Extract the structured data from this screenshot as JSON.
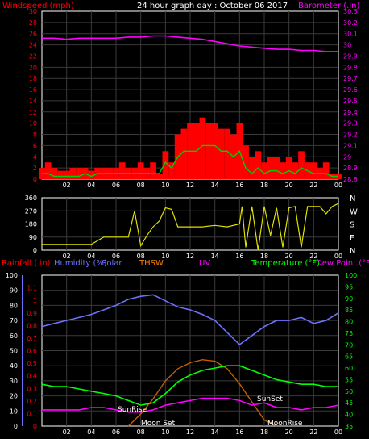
{
  "header": {
    "left_label": "Windspeed (mph)",
    "title": "24 hour graph day : October 06 2017",
    "right_label": "Barometer (.in)"
  },
  "colors": {
    "background": "#000000",
    "grid": "#3a3a3a",
    "axis": "#ffffff",
    "windspeed": "#ff0000",
    "windspeed_label": "#ff0000",
    "avg_wind": "#00d000",
    "barometer": "#ff00ff",
    "direction": "#e0e000",
    "rainfall": "#ff0000",
    "humidity": "#7070ff",
    "solar": "#7070ff",
    "thsw": "#ff8000",
    "uv": "#ff00ff",
    "temperature": "#00ff00",
    "dewpoint": "#ff00ff",
    "sun_curve": "#c06000",
    "tick_text": "#ffffff"
  },
  "chart_data": [
    {
      "type": "line",
      "name": "wind-barometer-panel",
      "xlabel": "",
      "xlim": [
        0,
        24
      ],
      "x_ticks": [
        "02",
        "04",
        "06",
        "08",
        "10",
        "12",
        "14",
        "16",
        "18",
        "20",
        "22",
        "00"
      ],
      "ylabel_left": "Windspeed (mph)",
      "ylim_left": [
        0,
        30
      ],
      "y_ticks_left": [
        "0",
        "2",
        "4",
        "6",
        "8",
        "10",
        "12",
        "14",
        "16",
        "18",
        "20",
        "22",
        "24",
        "26",
        "28",
        "30"
      ],
      "ylabel_right": "Barometer (.in)",
      "ylim_right": [
        28.8,
        30.3
      ],
      "y_ticks_right": [
        "28.8",
        "28.9",
        "29",
        "29.1",
        "29.2",
        "29.3",
        "29.4",
        "29.5",
        "29.6",
        "29.7",
        "29.8",
        "29.9",
        "30",
        "30.1",
        "30.2",
        "30.3"
      ],
      "grid": true,
      "series": [
        {
          "name": "windspeed",
          "axis": "left",
          "style": "bar",
          "x": [
            0,
            0.5,
            1,
            1.5,
            2,
            2.5,
            3,
            3.5,
            4,
            4.5,
            5,
            5.5,
            6,
            6.5,
            7,
            7.5,
            8,
            8.5,
            9,
            9.5,
            10,
            10.5,
            11,
            11.5,
            12,
            12.5,
            13,
            13.5,
            14,
            14.5,
            15,
            15.5,
            16,
            16.5,
            17,
            17.5,
            18,
            18.5,
            19,
            19.5,
            20,
            20.5,
            21,
            21.5,
            22,
            22.5,
            23,
            23.5,
            24
          ],
          "values": [
            2,
            3,
            2,
            1.5,
            1.5,
            2,
            2,
            2,
            1.5,
            2,
            2,
            2,
            2,
            3,
            2,
            2,
            3,
            2,
            3,
            1,
            5,
            3,
            8,
            9,
            10,
            10,
            11,
            10,
            10,
            9,
            9,
            8,
            10,
            6,
            4,
            5,
            3,
            4,
            4,
            3,
            4,
            3,
            5,
            3,
            3,
            2,
            3,
            1,
            1
          ]
        },
        {
          "name": "avg-wind",
          "axis": "left",
          "x": [
            0,
            0.5,
            1,
            1.5,
            2,
            2.5,
            3,
            3.5,
            4,
            4.5,
            5,
            5.5,
            6,
            6.5,
            7,
            7.5,
            8,
            8.5,
            9,
            9.5,
            10,
            10.5,
            11,
            11.5,
            12,
            12.5,
            13,
            13.5,
            14,
            14.5,
            15,
            15.5,
            16,
            16.5,
            17,
            17.5,
            18,
            18.5,
            19,
            19.5,
            20,
            20.5,
            21,
            21.5,
            22,
            22.5,
            23,
            23.5,
            24
          ],
          "values": [
            1,
            1,
            0.5,
            0.5,
            0.5,
            0.5,
            0.5,
            1,
            0.5,
            1,
            1,
            1,
            1,
            1,
            1,
            1,
            1,
            1,
            1,
            1,
            3,
            2,
            4,
            5,
            5,
            5,
            6,
            6,
            6,
            5,
            5,
            4,
            5,
            2,
            1,
            2,
            1,
            1.5,
            1.5,
            1,
            1.5,
            1,
            2,
            1.5,
            1,
            1,
            1,
            0.5,
            0.5
          ]
        },
        {
          "name": "barometer",
          "axis": "right",
          "x": [
            0,
            1,
            2,
            3,
            4,
            5,
            6,
            7,
            8,
            9,
            10,
            11,
            12,
            13,
            14,
            15,
            16,
            17,
            18,
            19,
            20,
            21,
            22,
            23,
            24
          ],
          "values": [
            30.06,
            30.06,
            30.05,
            30.06,
            30.06,
            30.06,
            30.06,
            30.07,
            30.07,
            30.08,
            30.08,
            30.07,
            30.06,
            30.05,
            30.03,
            30.01,
            29.99,
            29.98,
            29.97,
            29.96,
            29.96,
            29.95,
            29.95,
            29.94,
            29.94
          ]
        }
      ]
    },
    {
      "type": "line",
      "name": "wind-direction-panel",
      "xlim": [
        0,
        24
      ],
      "x_ticks": [
        "02",
        "04",
        "06",
        "08",
        "10",
        "12",
        "14",
        "16",
        "18",
        "20",
        "22",
        "00"
      ],
      "ylim": [
        0,
        360
      ],
      "y_ticks": [
        "0",
        "90",
        "180",
        "270",
        "360"
      ],
      "y_ticks_right": [
        "N",
        "E",
        "S",
        "W",
        "N"
      ],
      "grid": true,
      "series": [
        {
          "name": "direction",
          "x": [
            0,
            2,
            4,
            5,
            5.4,
            6,
            7,
            7.5,
            8,
            8.5,
            9,
            9.5,
            10,
            10.5,
            11,
            12,
            13,
            14,
            15,
            16,
            16.2,
            16.5,
            17,
            17.5,
            18,
            18.5,
            19,
            19.5,
            20,
            20.5,
            21,
            21.5,
            22,
            22.5,
            23,
            23.5,
            24
          ],
          "values": [
            40,
            40,
            40,
            90,
            90,
            90,
            90,
            270,
            30,
            100,
            160,
            200,
            290,
            280,
            160,
            160,
            160,
            170,
            160,
            180,
            300,
            20,
            300,
            0,
            300,
            100,
            290,
            20,
            290,
            300,
            20,
            300,
            300,
            300,
            250,
            300,
            320
          ]
        }
      ]
    },
    {
      "type": "line",
      "name": "temperature-humidity-panel",
      "labels": [
        "Rainfall (.in)",
        "Humidity (%)",
        "Solar",
        "THSW",
        "UV",
        "Temperature (°F)",
        "Dew Point (°F)"
      ],
      "xlim": [
        0,
        24
      ],
      "x_ticks": [
        "02",
        "04",
        "06",
        "08",
        "10",
        "12",
        "14",
        "16",
        "18",
        "20",
        "22",
        "00"
      ],
      "ylim_humidity": [
        0,
        100
      ],
      "y_ticks_humidity": [
        "0",
        "10",
        "20",
        "30",
        "40",
        "50",
        "60",
        "70",
        "80",
        "90",
        "100"
      ],
      "ylim_rain": [
        0,
        1.2
      ],
      "y_ticks_rain": [
        "0",
        "0.1",
        "0.2",
        "0.3",
        "0.4",
        "0.5",
        "0.6",
        "0.7",
        "0.8",
        "0.9",
        "1",
        "1.1"
      ],
      "ylim_temp": [
        35,
        100
      ],
      "y_ticks_temp": [
        "35",
        "40",
        "45",
        "50",
        "55",
        "60",
        "65",
        "70",
        "75",
        "80",
        "85",
        "90",
        "95",
        "100"
      ],
      "grid": true,
      "annotations": [
        "SunRise",
        "SunSet",
        "Moon Set",
        "MoonRise"
      ],
      "series": [
        {
          "name": "humidity",
          "axis": "humidity",
          "x": [
            0,
            1,
            2,
            3,
            4,
            5,
            6,
            7,
            8,
            9,
            10,
            11,
            12,
            13,
            14,
            15,
            16,
            17,
            18,
            19,
            20,
            21,
            22,
            23,
            24
          ],
          "values": [
            66,
            68,
            70,
            72,
            74,
            77,
            80,
            84,
            86,
            87,
            83,
            79,
            77,
            74,
            70,
            62,
            54,
            60,
            66,
            70,
            70,
            72,
            68,
            70,
            75
          ]
        },
        {
          "name": "temperature",
          "axis": "temp",
          "x": [
            0,
            1,
            2,
            3,
            4,
            5,
            6,
            7,
            8,
            9,
            10,
            11,
            12,
            13,
            14,
            15,
            16,
            17,
            18,
            19,
            20,
            21,
            22,
            23,
            24
          ],
          "values": [
            53,
            52,
            52,
            51,
            50,
            49,
            48,
            46,
            44,
            45,
            49,
            54,
            57,
            59,
            60,
            61,
            61,
            59,
            57,
            55,
            54,
            53,
            53,
            52,
            52
          ]
        },
        {
          "name": "dewpoint",
          "axis": "temp",
          "x": [
            0,
            1,
            2,
            3,
            4,
            5,
            6,
            7,
            8,
            9,
            10,
            11,
            12,
            13,
            14,
            15,
            16,
            17,
            18,
            19,
            20,
            21,
            22,
            23,
            24
          ],
          "values": [
            42,
            42,
            42,
            42,
            43,
            43,
            42,
            41,
            41,
            42,
            44,
            45,
            46,
            47,
            47,
            47,
            46,
            44,
            45,
            43,
            43,
            42,
            43,
            43,
            44
          ]
        },
        {
          "name": "thsw",
          "axis": "humidity",
          "x": [
            7,
            8,
            9,
            10,
            11,
            12,
            13,
            14,
            15,
            16,
            17,
            18,
            19
          ],
          "values": [
            0,
            8,
            18,
            30,
            38,
            42,
            44,
            43,
            38,
            28,
            16,
            4,
            0
          ]
        }
      ]
    }
  ]
}
